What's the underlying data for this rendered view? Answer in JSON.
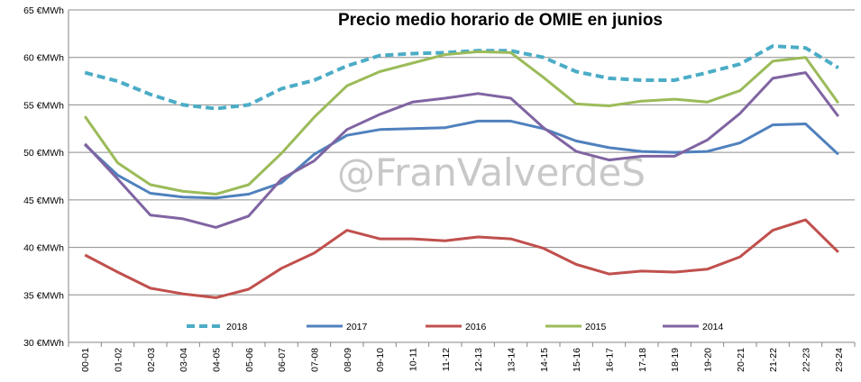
{
  "chart_data": {
    "type": "line",
    "title": "Precio medio horario de OMIE en junios",
    "watermark": "@FranValverdeS",
    "xlabel": "",
    "ylabel": "",
    "ylim": [
      30,
      65
    ],
    "y_ticks": [
      30,
      35,
      40,
      45,
      50,
      55,
      60,
      65
    ],
    "y_tick_labels": [
      "30 €MWh",
      "35 €MWh",
      "40 €MWh",
      "45 €MWh",
      "50 €MWh",
      "55 €MWh",
      "60 €MWh",
      "65 €MWh"
    ],
    "grid": true,
    "legend_position": "bottom-inside",
    "categories": [
      "00-01",
      "01-02",
      "02-03",
      "03-04",
      "04-05",
      "05-06",
      "06-07",
      "07-08",
      "08-09",
      "09-10",
      "10-11",
      "11-12",
      "12-13",
      "13-14",
      "14-15",
      "15-16",
      "16-17",
      "17-18",
      "18-19",
      "19-20",
      "20-21",
      "21-22",
      "22-23",
      "23-24"
    ],
    "series": [
      {
        "name": "2018",
        "color": "#4bacc6",
        "dashed": true,
        "values": [
          58.4,
          57.5,
          56.1,
          55.0,
          54.6,
          55.0,
          56.7,
          57.6,
          59.1,
          60.2,
          60.4,
          60.5,
          60.7,
          60.7,
          60.0,
          58.5,
          57.8,
          57.6,
          57.6,
          58.4,
          59.3,
          61.2,
          61.0,
          58.9
        ]
      },
      {
        "name": "2017",
        "color": "#4f81bd",
        "dashed": false,
        "values": [
          50.8,
          47.6,
          45.7,
          45.3,
          45.2,
          45.6,
          46.8,
          49.8,
          51.8,
          52.4,
          52.5,
          52.6,
          53.3,
          53.3,
          52.5,
          51.2,
          50.5,
          50.1,
          50.0,
          50.1,
          51.0,
          52.9,
          53.0,
          49.8
        ]
      },
      {
        "name": "2016",
        "color": "#c0504d",
        "dashed": false,
        "values": [
          39.2,
          37.4,
          35.7,
          35.1,
          34.7,
          35.6,
          37.8,
          39.4,
          41.8,
          40.9,
          40.9,
          40.7,
          41.1,
          40.9,
          39.9,
          38.2,
          37.2,
          37.5,
          37.4,
          37.7,
          39.0,
          41.8,
          42.9,
          39.5
        ]
      },
      {
        "name": "2015",
        "color": "#9bbb59",
        "dashed": false,
        "values": [
          53.8,
          48.9,
          46.6,
          45.9,
          45.6,
          46.6,
          49.9,
          53.7,
          57.0,
          58.5,
          59.4,
          60.3,
          60.6,
          60.5,
          57.9,
          55.1,
          54.9,
          55.4,
          55.6,
          55.3,
          56.5,
          59.6,
          60.0,
          55.2
        ]
      },
      {
        "name": "2014",
        "color": "#8064a2",
        "dashed": false,
        "values": [
          50.9,
          47.2,
          43.4,
          43.0,
          42.1,
          43.3,
          47.2,
          49.1,
          52.4,
          54.0,
          55.3,
          55.7,
          56.2,
          55.7,
          52.6,
          50.1,
          49.2,
          49.6,
          49.6,
          51.3,
          54.1,
          57.8,
          58.4,
          53.8
        ]
      }
    ]
  }
}
